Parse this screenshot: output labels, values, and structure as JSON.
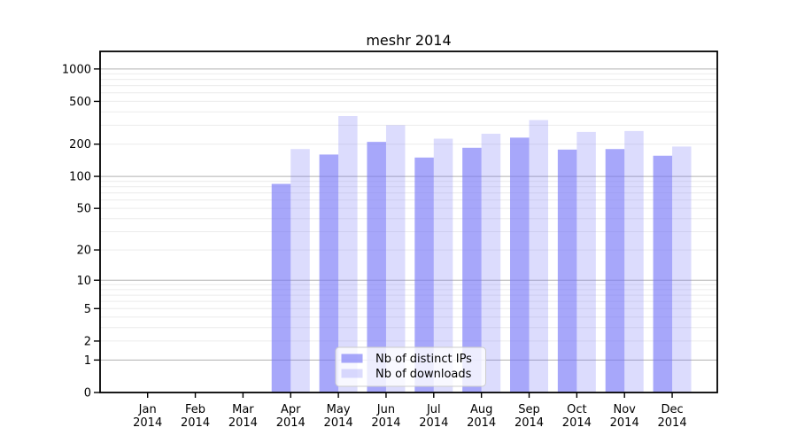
{
  "chart_data": {
    "type": "bar",
    "title": "meshr 2014",
    "x_tick_months": [
      "Jan",
      "Feb",
      "Mar",
      "Apr",
      "May",
      "Jun",
      "Jul",
      "Aug",
      "Sep",
      "Oct",
      "Nov",
      "Dec"
    ],
    "x_tick_year": "2014",
    "categories": [
      "Jan 2014",
      "Feb 2014",
      "Mar 2014",
      "Apr 2014",
      "May 2014",
      "Jun 2014",
      "Jul 2014",
      "Aug 2014",
      "Sep 2014",
      "Oct 2014",
      "Nov 2014",
      "Dec 2014"
    ],
    "series": [
      {
        "name": "Nb of distinct IPs",
        "color": "rgba(120,120,248,0.65)",
        "values": [
          0,
          0,
          0,
          85,
          160,
          210,
          150,
          185,
          230,
          178,
          180,
          156
        ]
      },
      {
        "name": "Nb of downloads",
        "color": "rgba(120,120,248,0.26)",
        "values": [
          0,
          0,
          0,
          180,
          365,
          300,
          225,
          250,
          335,
          260,
          265,
          190
        ]
      }
    ],
    "yscale": "log1p",
    "ylim": [
      0,
      1456
    ],
    "ytick_values": [
      0,
      1,
      2,
      5,
      10,
      20,
      50,
      100,
      200,
      500,
      1000
    ],
    "ytick_labels": [
      "0",
      "1",
      "2",
      "5",
      "10",
      "20",
      "50",
      "100",
      "200",
      "500",
      "1000"
    ],
    "grid": {
      "major_values": [
        1,
        10,
        100,
        1000
      ],
      "minor_values": [
        2,
        3,
        4,
        5,
        6,
        7,
        8,
        9,
        20,
        30,
        40,
        50,
        60,
        70,
        80,
        90,
        200,
        300,
        400,
        500,
        600,
        700,
        800,
        900
      ],
      "major_color": "#b0b0b0",
      "minor_color": "#ececec"
    },
    "legend": {
      "position": "lower-center",
      "background": "rgba(255,255,255,0.8)",
      "border_color": "#cccccc"
    },
    "axis_color": "#000000"
  }
}
